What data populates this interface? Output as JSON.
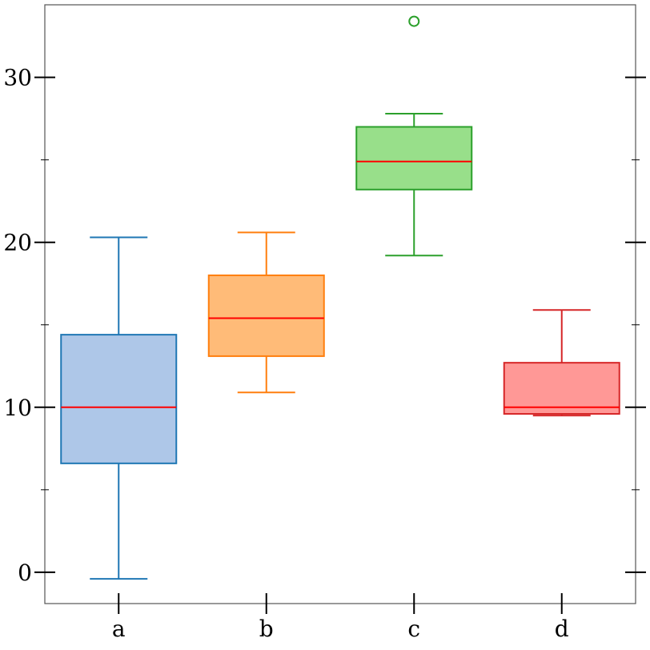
{
  "chart_data": {
    "type": "box",
    "title": "",
    "xlabel": "",
    "ylabel": "",
    "categories": [
      "a",
      "b",
      "c",
      "d"
    ],
    "ylim": [
      -1.9,
      34.4
    ],
    "y_ticks_major": [
      0,
      10,
      20,
      30
    ],
    "y_ticks_minor": [
      5,
      15,
      25
    ],
    "grid": false,
    "median_color": "#ff0000",
    "boxes": [
      {
        "label": "a",
        "whisker_low": -0.4,
        "q1": 6.6,
        "median": 10.0,
        "q3": 14.4,
        "whisker_high": 20.3,
        "outliers": [],
        "stroke": "#1f77b4",
        "fill": "#aec7e8"
      },
      {
        "label": "b",
        "whisker_low": 10.9,
        "q1": 13.1,
        "median": 15.4,
        "q3": 18.0,
        "whisker_high": 20.6,
        "outliers": [],
        "stroke": "#ff7f0e",
        "fill": "#ffbb78"
      },
      {
        "label": "c",
        "whisker_low": 19.2,
        "q1": 23.2,
        "median": 24.9,
        "q3": 27.0,
        "whisker_high": 27.8,
        "outliers": [
          33.4
        ],
        "stroke": "#2ca02c",
        "fill": "#98df8a"
      },
      {
        "label": "d",
        "whisker_low": 9.5,
        "q1": 9.6,
        "median": 10.0,
        "q3": 12.7,
        "whisker_high": 15.9,
        "outliers": [],
        "stroke": "#d62728",
        "fill": "#ff9896"
      }
    ]
  }
}
